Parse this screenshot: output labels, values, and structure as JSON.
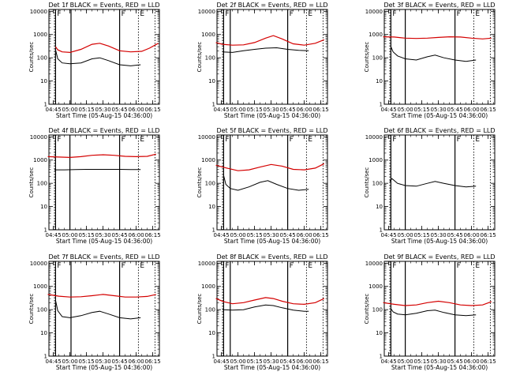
{
  "chart_data": [
    {
      "type": "line",
      "title": "Det 1f BLACK = Events, RED = LLD",
      "xlabel": "Start Time (05-Aug-15 04:36:00)",
      "ylabel": "Counts/sec",
      "yscale": "log",
      "ylim": [
        1,
        10000
      ],
      "xticks": [
        "04:45",
        "05:00",
        "05:15",
        "05:30",
        "05:45",
        "06:00",
        "06:15"
      ],
      "yticks": [
        "1",
        "10",
        "100",
        "1000",
        "10000"
      ],
      "solid_vlines": [
        "04:47",
        "05:01",
        "05:45"
      ],
      "dotted_vlines": [
        "04:46",
        "06:02",
        "06:17"
      ],
      "labels": [
        "F",
        "F",
        "E"
      ],
      "series": [
        {
          "color": "#d40000",
          "x": [
            "04:47",
            "04:49",
            "04:53",
            "05:00",
            "05:10",
            "05:20",
            "05:27",
            "05:35",
            "05:45",
            "05:55",
            "06:05",
            "06:12",
            "06:20"
          ],
          "values": [
            300,
            220,
            180,
            170,
            230,
            380,
            420,
            320,
            200,
            180,
            190,
            260,
            420
          ]
        },
        {
          "color": "#000000",
          "x": [
            "04:47",
            "04:49",
            "04:53",
            "05:00",
            "05:10",
            "05:20",
            "05:27",
            "05:35",
            "05:45",
            "05:55",
            "06:04"
          ],
          "values": [
            220,
            90,
            60,
            55,
            60,
            90,
            100,
            75,
            50,
            45,
            50
          ]
        }
      ]
    },
    {
      "type": "line",
      "title": "Det 2f BLACK = Events, RED = LLD",
      "xlabel": "Start Time (05-Aug-15 04:36:00)",
      "ylabel": "Counts/sec",
      "yscale": "log",
      "ylim": [
        1,
        10000
      ],
      "xticks": [
        "04:45",
        "05:00",
        "05:15",
        "05:30",
        "05:45",
        "06:00",
        "06:15"
      ],
      "yticks": [
        "1",
        "10",
        "100",
        "1000",
        "10000"
      ],
      "solid_vlines": [
        "04:47",
        "04:53",
        "05:45"
      ],
      "dotted_vlines": [
        "04:46",
        "06:02",
        "06:17"
      ],
      "labels": [
        "F",
        "F",
        "E"
      ],
      "series": [
        {
          "color": "#d40000",
          "x": [
            "04:40",
            "04:46",
            "04:55",
            "05:05",
            "05:15",
            "05:25",
            "05:32",
            "05:40",
            "05:50",
            "06:00",
            "06:10",
            "06:18"
          ],
          "values": [
            450,
            380,
            350,
            360,
            450,
            700,
            900,
            650,
            400,
            350,
            420,
            600
          ]
        },
        {
          "color": "#000000",
          "x": [
            "04:46",
            "04:55",
            "05:05",
            "05:15",
            "05:25",
            "05:35",
            "05:45",
            "05:55",
            "06:04"
          ],
          "values": [
            180,
            170,
            200,
            230,
            260,
            270,
            230,
            210,
            200
          ]
        }
      ]
    },
    {
      "type": "line",
      "title": "Det 3f BLACK = Events, RED = LLD",
      "xlabel": "Start Time (05-Aug-15 04:36:00)",
      "ylabel": "Counts/sec",
      "yscale": "log",
      "ylim": [
        1,
        10000
      ],
      "xticks": [
        "04:45",
        "05:00",
        "05:15",
        "05:30",
        "05:45",
        "06:00",
        "06:15"
      ],
      "yticks": [
        "1",
        "10",
        "100",
        "1000",
        "10000"
      ],
      "solid_vlines": [
        "04:47",
        "05:00",
        "05:45"
      ],
      "dotted_vlines": [
        "04:46",
        "06:02",
        "06:17"
      ],
      "labels": [
        "F",
        "F",
        "E"
      ],
      "series": [
        {
          "color": "#d40000",
          "x": [
            "04:40",
            "04:50",
            "05:00",
            "05:10",
            "05:20",
            "05:30",
            "05:40",
            "05:50",
            "06:00",
            "06:10",
            "06:18"
          ],
          "values": [
            800,
            780,
            700,
            680,
            700,
            750,
            800,
            780,
            700,
            650,
            700
          ]
        },
        {
          "color": "#000000",
          "x": [
            "04:47",
            "04:49",
            "04:53",
            "05:00",
            "05:10",
            "05:20",
            "05:27",
            "05:35",
            "05:45",
            "05:55",
            "06:04"
          ],
          "values": [
            300,
            180,
            120,
            90,
            80,
            110,
            130,
            100,
            80,
            70,
            80
          ]
        }
      ]
    },
    {
      "type": "line",
      "title": "Det 4f BLACK = Events, RED = LLD",
      "xlabel": "Start Time (05-Aug-15 04:36:00)",
      "ylabel": "Counts/sec",
      "yscale": "log",
      "ylim": [
        1,
        10000
      ],
      "xticks": [
        "04:45",
        "05:00",
        "05:15",
        "05:30",
        "05:45",
        "06:00",
        "06:15"
      ],
      "yticks": [
        "1",
        "10",
        "100",
        "1000",
        "10000"
      ],
      "solid_vlines": [
        "04:47",
        "05:00",
        "05:45"
      ],
      "dotted_vlines": [
        "04:46",
        "06:02",
        "06:17"
      ],
      "labels": [
        "F",
        "F",
        "E"
      ],
      "series": [
        {
          "color": "#d40000",
          "x": [
            "04:40",
            "04:50",
            "05:00",
            "05:10",
            "05:20",
            "05:30",
            "05:40",
            "05:50",
            "06:00",
            "06:10",
            "06:18"
          ],
          "values": [
            1400,
            1350,
            1300,
            1400,
            1600,
            1700,
            1600,
            1450,
            1400,
            1450,
            1800
          ]
        },
        {
          "color": "#000000",
          "x": [
            "04:46",
            "04:55",
            "05:05",
            "05:15",
            "05:25",
            "05:35",
            "05:45",
            "05:55",
            "06:04"
          ],
          "values": [
            380,
            380,
            390,
            400,
            400,
            400,
            400,
            390,
            390
          ]
        }
      ]
    },
    {
      "type": "line",
      "title": "Det 5f BLACK = Events, RED = LLD",
      "xlabel": "Start Time (05-Aug-15 04:36:00)",
      "ylabel": "Counts/sec",
      "yscale": "log",
      "ylim": [
        1,
        10000
      ],
      "xticks": [
        "04:45",
        "05:00",
        "05:15",
        "05:30",
        "05:45",
        "06:00",
        "06:15"
      ],
      "yticks": [
        "1",
        "10",
        "100",
        "1000",
        "10000"
      ],
      "solid_vlines": [
        "04:47",
        "04:53",
        "05:45"
      ],
      "dotted_vlines": [
        "04:46",
        "06:02",
        "06:17"
      ],
      "labels": [
        "F",
        "F",
        "E"
      ],
      "series": [
        {
          "color": "#d40000",
          "x": [
            "04:40",
            "04:50",
            "05:00",
            "05:10",
            "05:20",
            "05:30",
            "05:40",
            "05:50",
            "06:00",
            "06:10",
            "06:18"
          ],
          "values": [
            600,
            450,
            350,
            380,
            500,
            650,
            550,
            400,
            380,
            450,
            700
          ]
        },
        {
          "color": "#000000",
          "x": [
            "04:47",
            "04:49",
            "04:53",
            "05:00",
            "05:10",
            "05:20",
            "05:27",
            "05:35",
            "05:45",
            "05:55",
            "06:04"
          ],
          "values": [
            220,
            90,
            60,
            50,
            70,
            110,
            130,
            90,
            60,
            50,
            55
          ]
        }
      ]
    },
    {
      "type": "line",
      "title": "Det 6f BLACK = Events, RED = LLD",
      "xlabel": "Start Time (05-Aug-15 04:36:00)",
      "ylabel": "Counts/sec",
      "yscale": "log",
      "ylim": [
        1,
        10000
      ],
      "xticks": [
        "04:45",
        "05:00",
        "05:15",
        "05:30",
        "05:45",
        "06:00",
        "06:15"
      ],
      "yticks": [
        "1",
        "10",
        "100",
        "1000",
        "10000"
      ],
      "solid_vlines": [
        "04:47",
        "05:00",
        "05:45"
      ],
      "dotted_vlines": [
        "04:46",
        "06:02",
        "06:17"
      ],
      "labels": [
        "F",
        "F",
        "E"
      ],
      "series": [
        {
          "color": "#000000",
          "x": [
            "04:46",
            "04:48",
            "04:53",
            "05:00",
            "05:10",
            "05:20",
            "05:27",
            "05:35",
            "05:45",
            "05:55",
            "06:04"
          ],
          "values": [
            120,
            160,
            100,
            80,
            75,
            100,
            120,
            100,
            80,
            70,
            75
          ]
        }
      ]
    },
    {
      "type": "line",
      "title": "Det 7f BLACK = Events, RED = LLD",
      "xlabel": "Start Time (05-Aug-15 04:36:00)",
      "ylabel": "Counts/sec",
      "yscale": "log",
      "ylim": [
        1,
        10000
      ],
      "xticks": [
        "04:45",
        "05:00",
        "05:15",
        "05:30",
        "05:45",
        "06:00",
        "06:15"
      ],
      "yticks": [
        "1",
        "10",
        "100",
        "1000",
        "10000"
      ],
      "solid_vlines": [
        "04:47",
        "05:01",
        "05:45"
      ],
      "dotted_vlines": [
        "04:46",
        "06:02",
        "06:17"
      ],
      "labels": [
        "F",
        "F",
        "E"
      ],
      "series": [
        {
          "color": "#d40000",
          "x": [
            "04:40",
            "04:50",
            "05:00",
            "05:10",
            "05:20",
            "05:30",
            "05:40",
            "05:50",
            "06:00",
            "06:10",
            "06:18"
          ],
          "values": [
            450,
            380,
            350,
            360,
            400,
            450,
            400,
            350,
            350,
            370,
            450
          ]
        },
        {
          "color": "#000000",
          "x": [
            "04:47",
            "04:49",
            "04:53",
            "05:00",
            "05:10",
            "05:20",
            "05:27",
            "05:35",
            "05:45",
            "05:55",
            "06:04"
          ],
          "values": [
            250,
            90,
            50,
            45,
            55,
            75,
            85,
            65,
            45,
            40,
            45
          ]
        }
      ]
    },
    {
      "type": "line",
      "title": "Det 8f BLACK = Events, RED = LLD",
      "xlabel": "Start Time (05-Aug-15 04:36:00)",
      "ylabel": "Counts/sec",
      "yscale": "log",
      "ylim": [
        1,
        10000
      ],
      "xticks": [
        "04:45",
        "05:00",
        "05:15",
        "05:30",
        "05:45",
        "06:00",
        "06:15"
      ],
      "yticks": [
        "1",
        "10",
        "100",
        "1000",
        "10000"
      ],
      "solid_vlines": [
        "04:47",
        "04:53",
        "05:45"
      ],
      "dotted_vlines": [
        "04:46",
        "06:02",
        "06:17"
      ],
      "labels": [
        "F",
        "F",
        "E"
      ],
      "series": [
        {
          "color": "#d40000",
          "x": [
            "04:40",
            "04:47",
            "04:55",
            "05:05",
            "05:15",
            "05:25",
            "05:32",
            "05:40",
            "05:50",
            "06:00",
            "06:10",
            "06:18"
          ],
          "values": [
            300,
            220,
            180,
            200,
            260,
            330,
            300,
            230,
            180,
            170,
            200,
            300
          ]
        },
        {
          "color": "#000000",
          "x": [
            "04:46",
            "04:55",
            "05:05",
            "05:15",
            "05:25",
            "05:32",
            "05:40",
            "05:50",
            "06:00",
            "06:04"
          ],
          "values": [
            100,
            95,
            100,
            130,
            160,
            150,
            120,
            95,
            85,
            85
          ]
        }
      ]
    },
    {
      "type": "line",
      "title": "Det 9f BLACK = Events, RED = LLD",
      "xlabel": "Start Time (05-Aug-15 04:36:00)",
      "ylabel": "Counts/sec",
      "yscale": "log",
      "ylim": [
        1,
        10000
      ],
      "xticks": [
        "04:45",
        "05:00",
        "05:15",
        "05:30",
        "05:45",
        "06:00",
        "06:15"
      ],
      "yticks": [
        "1",
        "10",
        "100",
        "1000",
        "10000"
      ],
      "solid_vlines": [
        "04:47",
        "05:00",
        "05:45"
      ],
      "dotted_vlines": [
        "04:46",
        "06:02",
        "06:17"
      ],
      "labels": [
        "F",
        "F",
        "E"
      ],
      "series": [
        {
          "color": "#d40000",
          "x": [
            "04:40",
            "04:50",
            "05:00",
            "05:10",
            "05:20",
            "05:30",
            "05:40",
            "05:50",
            "06:00",
            "06:10",
            "06:18"
          ],
          "values": [
            200,
            170,
            150,
            160,
            200,
            230,
            200,
            160,
            150,
            160,
            220
          ]
        },
        {
          "color": "#000000",
          "x": [
            "04:47",
            "04:49",
            "04:53",
            "05:00",
            "05:10",
            "05:20",
            "05:27",
            "05:35",
            "05:45",
            "05:55",
            "06:04"
          ],
          "values": [
            110,
            80,
            65,
            60,
            70,
            90,
            95,
            75,
            60,
            55,
            60
          ]
        }
      ]
    }
  ]
}
